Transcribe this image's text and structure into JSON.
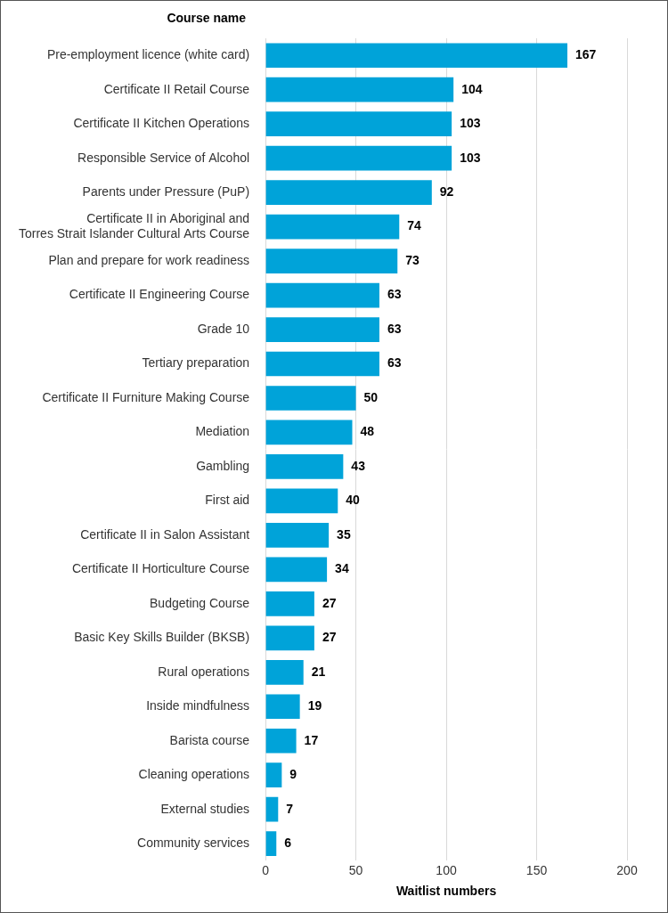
{
  "chart_data": {
    "type": "bar",
    "orientation": "horizontal",
    "xlabel": "Waitlist numbers",
    "ylabel": "Course name",
    "categories": [
      "Pre-employment licence (white card)",
      "Certificate II Retail Course",
      "Certificate II Kitchen Operations",
      "Responsible Service of Alcohol",
      "Parents under Pressure (PuP)",
      "Certificate II in Aboriginal and Torres Strait Islander Cultural Arts Course",
      "Plan and prepare for work readiness",
      "Certificate II Engineering Course",
      "Grade 10",
      "Tertiary preparation",
      "Certificate II Furniture Making Course",
      "Mediation",
      "Gambling",
      "First aid",
      "Certificate II in Salon Assistant",
      "Certificate II Horticulture Course",
      "Budgeting Course",
      "Basic Key Skills Builder (BKSB)",
      "Rural operations",
      "Inside mindfulness",
      "Barista course",
      "Cleaning operations",
      "External studies",
      "Community services"
    ],
    "values": [
      167,
      104,
      103,
      103,
      92,
      74,
      73,
      63,
      63,
      63,
      50,
      48,
      43,
      40,
      35,
      34,
      27,
      27,
      21,
      19,
      17,
      9,
      7,
      6
    ],
    "color": "#00a3d9",
    "xlim": [
      0,
      200
    ],
    "xticks": [
      0,
      50,
      100,
      150,
      200
    ],
    "grid": true,
    "data_labels": true
  }
}
